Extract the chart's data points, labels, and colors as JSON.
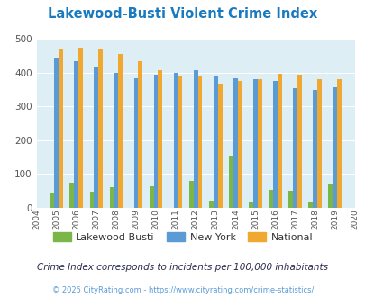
{
  "title": "Lakewood-Busti Violent Crime Index",
  "years": [
    2004,
    2005,
    2006,
    2007,
    2008,
    2009,
    2010,
    2011,
    2012,
    2013,
    2014,
    2015,
    2016,
    2017,
    2018,
    2019,
    2020
  ],
  "lakewood": [
    0,
    42,
    75,
    48,
    60,
    0,
    65,
    0,
    80,
    20,
    153,
    18,
    52,
    50,
    15,
    68,
    0
  ],
  "new_york": [
    0,
    445,
    434,
    414,
    400,
    384,
    393,
    400,
    406,
    390,
    383,
    380,
    375,
    354,
    349,
    356,
    0
  ],
  "national": [
    0,
    469,
    474,
    468,
    455,
    432,
    406,
    387,
    387,
    367,
    375,
    380,
    397,
    394,
    380,
    379,
    0
  ],
  "lakewood_color": "#7ab648",
  "newyork_color": "#5b9bd5",
  "national_color": "#f0a830",
  "bg_color": "#ddeef5",
  "ylabel_ticks": [
    0,
    100,
    200,
    300,
    400,
    500
  ],
  "ylim": [
    0,
    500
  ],
  "subtitle": "Crime Index corresponds to incidents per 100,000 inhabitants",
  "footer": "© 2025 CityRating.com - https://www.cityrating.com/crime-statistics/",
  "title_color": "#1a7abf",
  "subtitle_color": "#2a2a4a",
  "footer_color": "#5b9bd5"
}
